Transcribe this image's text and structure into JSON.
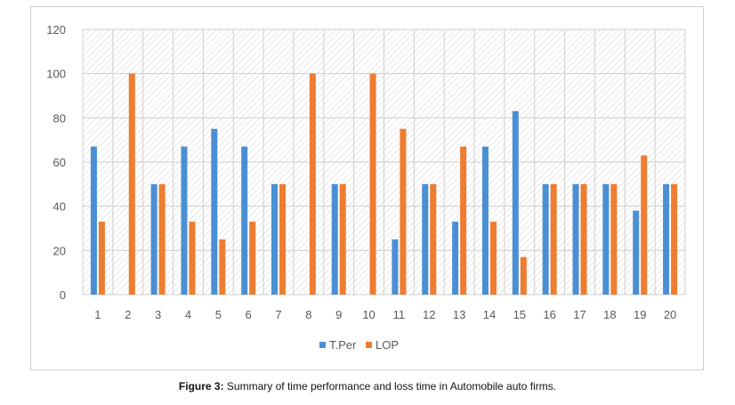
{
  "chart_data": {
    "type": "bar",
    "categories": [
      "1",
      "2",
      "3",
      "4",
      "5",
      "6",
      "7",
      "8",
      "9",
      "10",
      "11",
      "12",
      "13",
      "14",
      "15",
      "16",
      "17",
      "18",
      "19",
      "20"
    ],
    "series": [
      {
        "name": "T.Per",
        "values": [
          67,
          0,
          50,
          67,
          75,
          67,
          50,
          0,
          50,
          0,
          25,
          50,
          33,
          67,
          83,
          50,
          50,
          50,
          38,
          50
        ]
      },
      {
        "name": "LOP",
        "values": [
          33,
          100,
          50,
          33,
          25,
          33,
          50,
          100,
          50,
          100,
          75,
          50,
          67,
          33,
          17,
          50,
          50,
          50,
          63,
          50
        ]
      }
    ],
    "ylim": [
      0,
      120
    ],
    "yticks": [
      "0",
      "20",
      "40",
      "60",
      "80",
      "100",
      "120"
    ],
    "title": "",
    "xlabel": "",
    "ylabel": "",
    "legend": "bottom",
    "grid": "hatched background",
    "colors": {
      "T.Per": "#4a8fd4",
      "LOP": "#ee7d31"
    }
  },
  "caption": {
    "label": "Figure 3:",
    "text": " Summary of time performance and loss time in Automobile auto firms."
  }
}
